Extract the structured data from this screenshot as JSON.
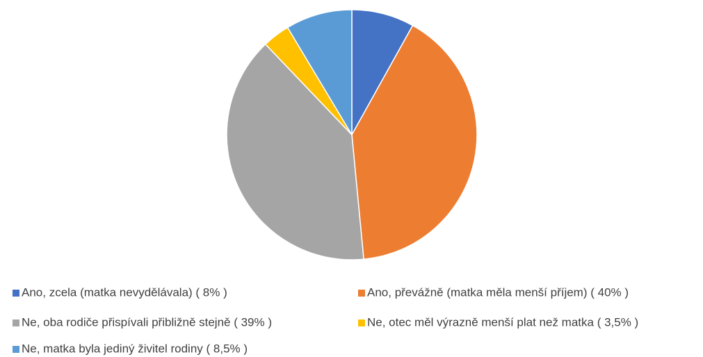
{
  "chart_data": {
    "type": "pie",
    "categories": [
      "Ano, zcela (matka nevydělávala) ( 8% )",
      "Ano, převážně (matka měla menší příjem) ( 40% )",
      "Ne, oba rodiče přispívali přibližně stejně ( 39% )",
      "Ne, otec měl výrazně menší plat než matka ( 3,5% )",
      "Ne, matka byla jediný živitel rodiny ( 8,5% )"
    ],
    "values": [
      8,
      40,
      39,
      3.5,
      8.5
    ],
    "colors": [
      "#4472c4",
      "#ed7d31",
      "#a5a5a5",
      "#ffc000",
      "#5b9bd5"
    ],
    "legend": "bottom"
  }
}
